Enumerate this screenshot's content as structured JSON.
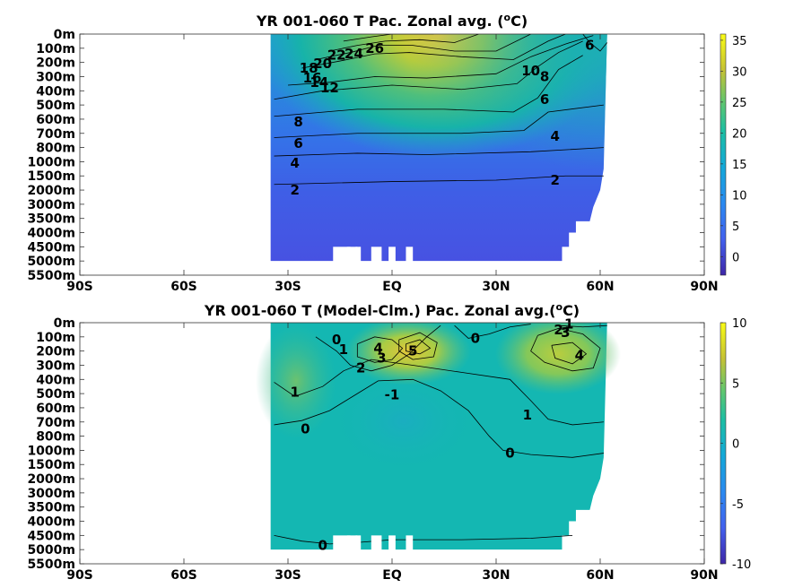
{
  "chart_data": [
    {
      "type": "heatmap",
      "title_main": "YR 001-060 T Pac. Zonal avg. (",
      "title_sup": "o",
      "title_end": "C)",
      "x_ticks": [
        "90S",
        "60S",
        "30S",
        "EQ",
        "30N",
        "60N",
        "90N"
      ],
      "x_values": [
        -90,
        -60,
        -30,
        0,
        30,
        60,
        90
      ],
      "y_ticks": [
        "0m",
        "100m",
        "200m",
        "300m",
        "400m",
        "500m",
        "600m",
        "700m",
        "800m",
        "1000m",
        "1500m",
        "2000m",
        "3000m",
        "3500m",
        "4000m",
        "4500m",
        "5000m",
        "5500m"
      ],
      "colorbar_ticks": [
        35,
        30,
        25,
        20,
        15,
        10,
        5,
        0
      ],
      "colorbar_labels": [
        "35",
        "30",
        "25",
        "20",
        "15",
        "10",
        "5",
        "0"
      ],
      "colorbar_range": [
        -3,
        36
      ],
      "contour_labels": [
        {
          "text": "26",
          "lat": -5,
          "depth_index": 1.0
        },
        {
          "text": "24",
          "lat": -11,
          "depth_index": 1.4
        },
        {
          "text": "22",
          "lat": -16,
          "depth_index": 1.5
        },
        {
          "text": "20",
          "lat": -20,
          "depth_index": 2.1
        },
        {
          "text": "18",
          "lat": -24,
          "depth_index": 2.4
        },
        {
          "text": "16",
          "lat": -23,
          "depth_index": 3.1
        },
        {
          "text": "14",
          "lat": -21,
          "depth_index": 3.4
        },
        {
          "text": "12",
          "lat": -18,
          "depth_index": 3.8
        },
        {
          "text": "10",
          "lat": 40,
          "depth_index": 2.6
        },
        {
          "text": "8",
          "lat": 44,
          "depth_index": 3.0
        },
        {
          "text": "6",
          "lat": 57,
          "depth_index": 0.8
        },
        {
          "text": "8",
          "lat": -27,
          "depth_index": 6.2
        },
        {
          "text": "6",
          "lat": -27,
          "depth_index": 7.7
        },
        {
          "text": "6",
          "lat": 44,
          "depth_index": 4.6
        },
        {
          "text": "4",
          "lat": -28,
          "depth_index": 9.1
        },
        {
          "text": "4",
          "lat": 47,
          "depth_index": 7.2
        },
        {
          "text": "2",
          "lat": -28,
          "depth_index": 11.0
        },
        {
          "text": "2",
          "lat": 47,
          "depth_index": 10.3
        }
      ]
    },
    {
      "type": "heatmap",
      "title_main": "YR 001-060 T (Model-Clm.) Pac. Zonal avg.(",
      "title_sup": "o",
      "title_end": "C)",
      "x_ticks": [
        "90S",
        "60S",
        "30S",
        "EQ",
        "30N",
        "60N",
        "90N"
      ],
      "x_values": [
        -90,
        -60,
        -30,
        0,
        30,
        60,
        90
      ],
      "y_ticks": [
        "0m",
        "100m",
        "200m",
        "300m",
        "400m",
        "500m",
        "600m",
        "700m",
        "800m",
        "1000m",
        "1500m",
        "2000m",
        "3000m",
        "3500m",
        "4000m",
        "4500m",
        "5000m",
        "5500m"
      ],
      "colorbar_ticks": [
        10,
        5,
        0,
        -5,
        -10
      ],
      "colorbar_labels": [
        "10",
        "5",
        "0",
        "-5",
        "-10"
      ],
      "colorbar_range": [
        -10,
        10
      ],
      "contour_labels": [
        {
          "text": "1",
          "lat": 51,
          "depth_index": 0.1
        },
        {
          "text": "2",
          "lat": 48,
          "depth_index": 0.5
        },
        {
          "text": "3",
          "lat": 50,
          "depth_index": 0.7
        },
        {
          "text": "4",
          "lat": 54,
          "depth_index": 2.3
        },
        {
          "text": "0",
          "lat": -16,
          "depth_index": 1.2
        },
        {
          "text": "1",
          "lat": -14,
          "depth_index": 1.9
        },
        {
          "text": "4",
          "lat": -4,
          "depth_index": 1.8
        },
        {
          "text": "3",
          "lat": -3,
          "depth_index": 2.5
        },
        {
          "text": "2",
          "lat": -9,
          "depth_index": 3.2
        },
        {
          "text": "5",
          "lat": 6,
          "depth_index": 2.0
        },
        {
          "text": "0",
          "lat": 24,
          "depth_index": 1.1
        },
        {
          "text": "1",
          "lat": -28,
          "depth_index": 4.9
        },
        {
          "text": "-1",
          "lat": 0,
          "depth_index": 5.1
        },
        {
          "text": "1",
          "lat": 39,
          "depth_index": 6.5
        },
        {
          "text": "0",
          "lat": -25,
          "depth_index": 7.5
        },
        {
          "text": "0",
          "lat": 34,
          "depth_index": 9.2
        },
        {
          "text": "0",
          "lat": -20,
          "depth_index": 15.7
        }
      ]
    }
  ]
}
